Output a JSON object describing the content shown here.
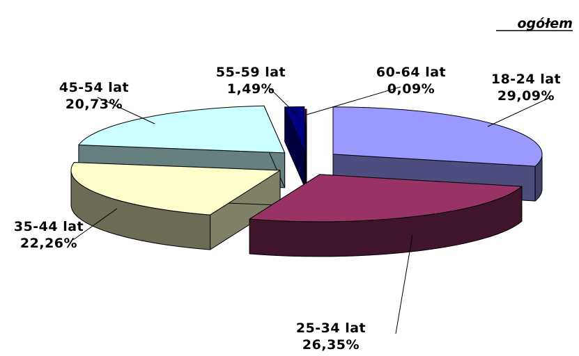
{
  "chart_data": {
    "type": "pie",
    "title": "ogółem",
    "style": "3d-exploded",
    "slices": [
      {
        "label": "18-24 lat",
        "value": 29.09,
        "value_label": "29,09%",
        "color": "#9999ff"
      },
      {
        "label": "25-34 lat",
        "value": 26.35,
        "value_label": "26,35%",
        "color": "#993366"
      },
      {
        "label": "35-44 lat",
        "value": 22.26,
        "value_label": "22,26%",
        "color": "#ffffcc"
      },
      {
        "label": "45-54 lat",
        "value": 20.73,
        "value_label": "20,73%",
        "color": "#ccffff"
      },
      {
        "label": "55-59 lat",
        "value": 1.49,
        "value_label": "1,49%",
        "color": "#000080"
      },
      {
        "label": "60-64 lat",
        "value": 0.09,
        "value_label": "0,09%",
        "color": "#ff00ff"
      }
    ]
  }
}
